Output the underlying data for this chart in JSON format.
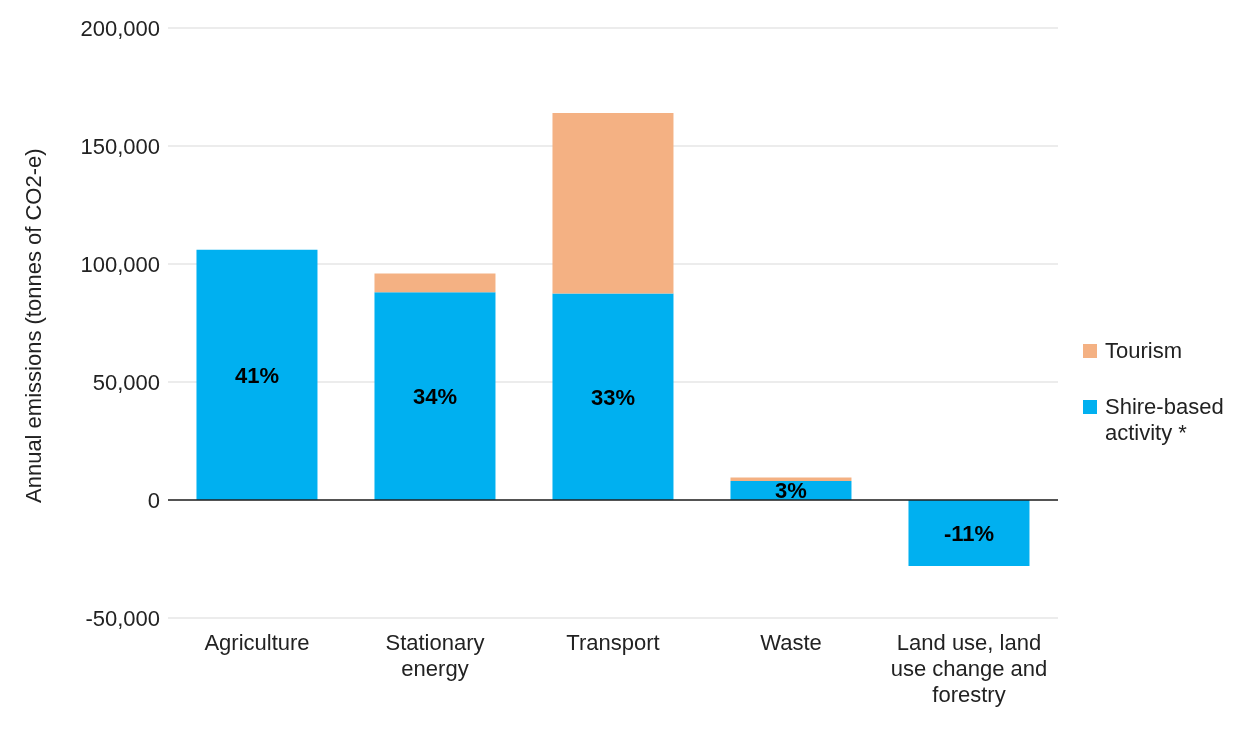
{
  "chart_data": {
    "type": "bar",
    "stacked": true,
    "ylabel": "Annual emissions (tonnes of CO2-e)",
    "categories": [
      "Agriculture",
      "Stationary energy",
      "Transport",
      "Waste",
      "Land use, land use change and forestry"
    ],
    "series": [
      {
        "name": "Shire-based activity *",
        "color": "#00b0f0",
        "values": [
          106000,
          88000,
          87500,
          8000,
          -28000
        ]
      },
      {
        "name": "Tourism",
        "color": "#f4b183",
        "values": [
          null,
          8000,
          76500,
          1500,
          null
        ]
      }
    ],
    "annotations": [
      "41%",
      "34%",
      "33%",
      "3%",
      "-11%"
    ],
    "ylim": [
      -50000,
      200000
    ],
    "yticks": [
      {
        "value": -50000,
        "label": "-50,000"
      },
      {
        "value": 0,
        "label": "0"
      },
      {
        "value": 50000,
        "label": "50,000"
      },
      {
        "value": 100000,
        "label": "100,000"
      },
      {
        "value": 150000,
        "label": "150,000"
      },
      {
        "value": 200000,
        "label": "200,000"
      }
    ],
    "grid": "y",
    "legend": "right"
  }
}
